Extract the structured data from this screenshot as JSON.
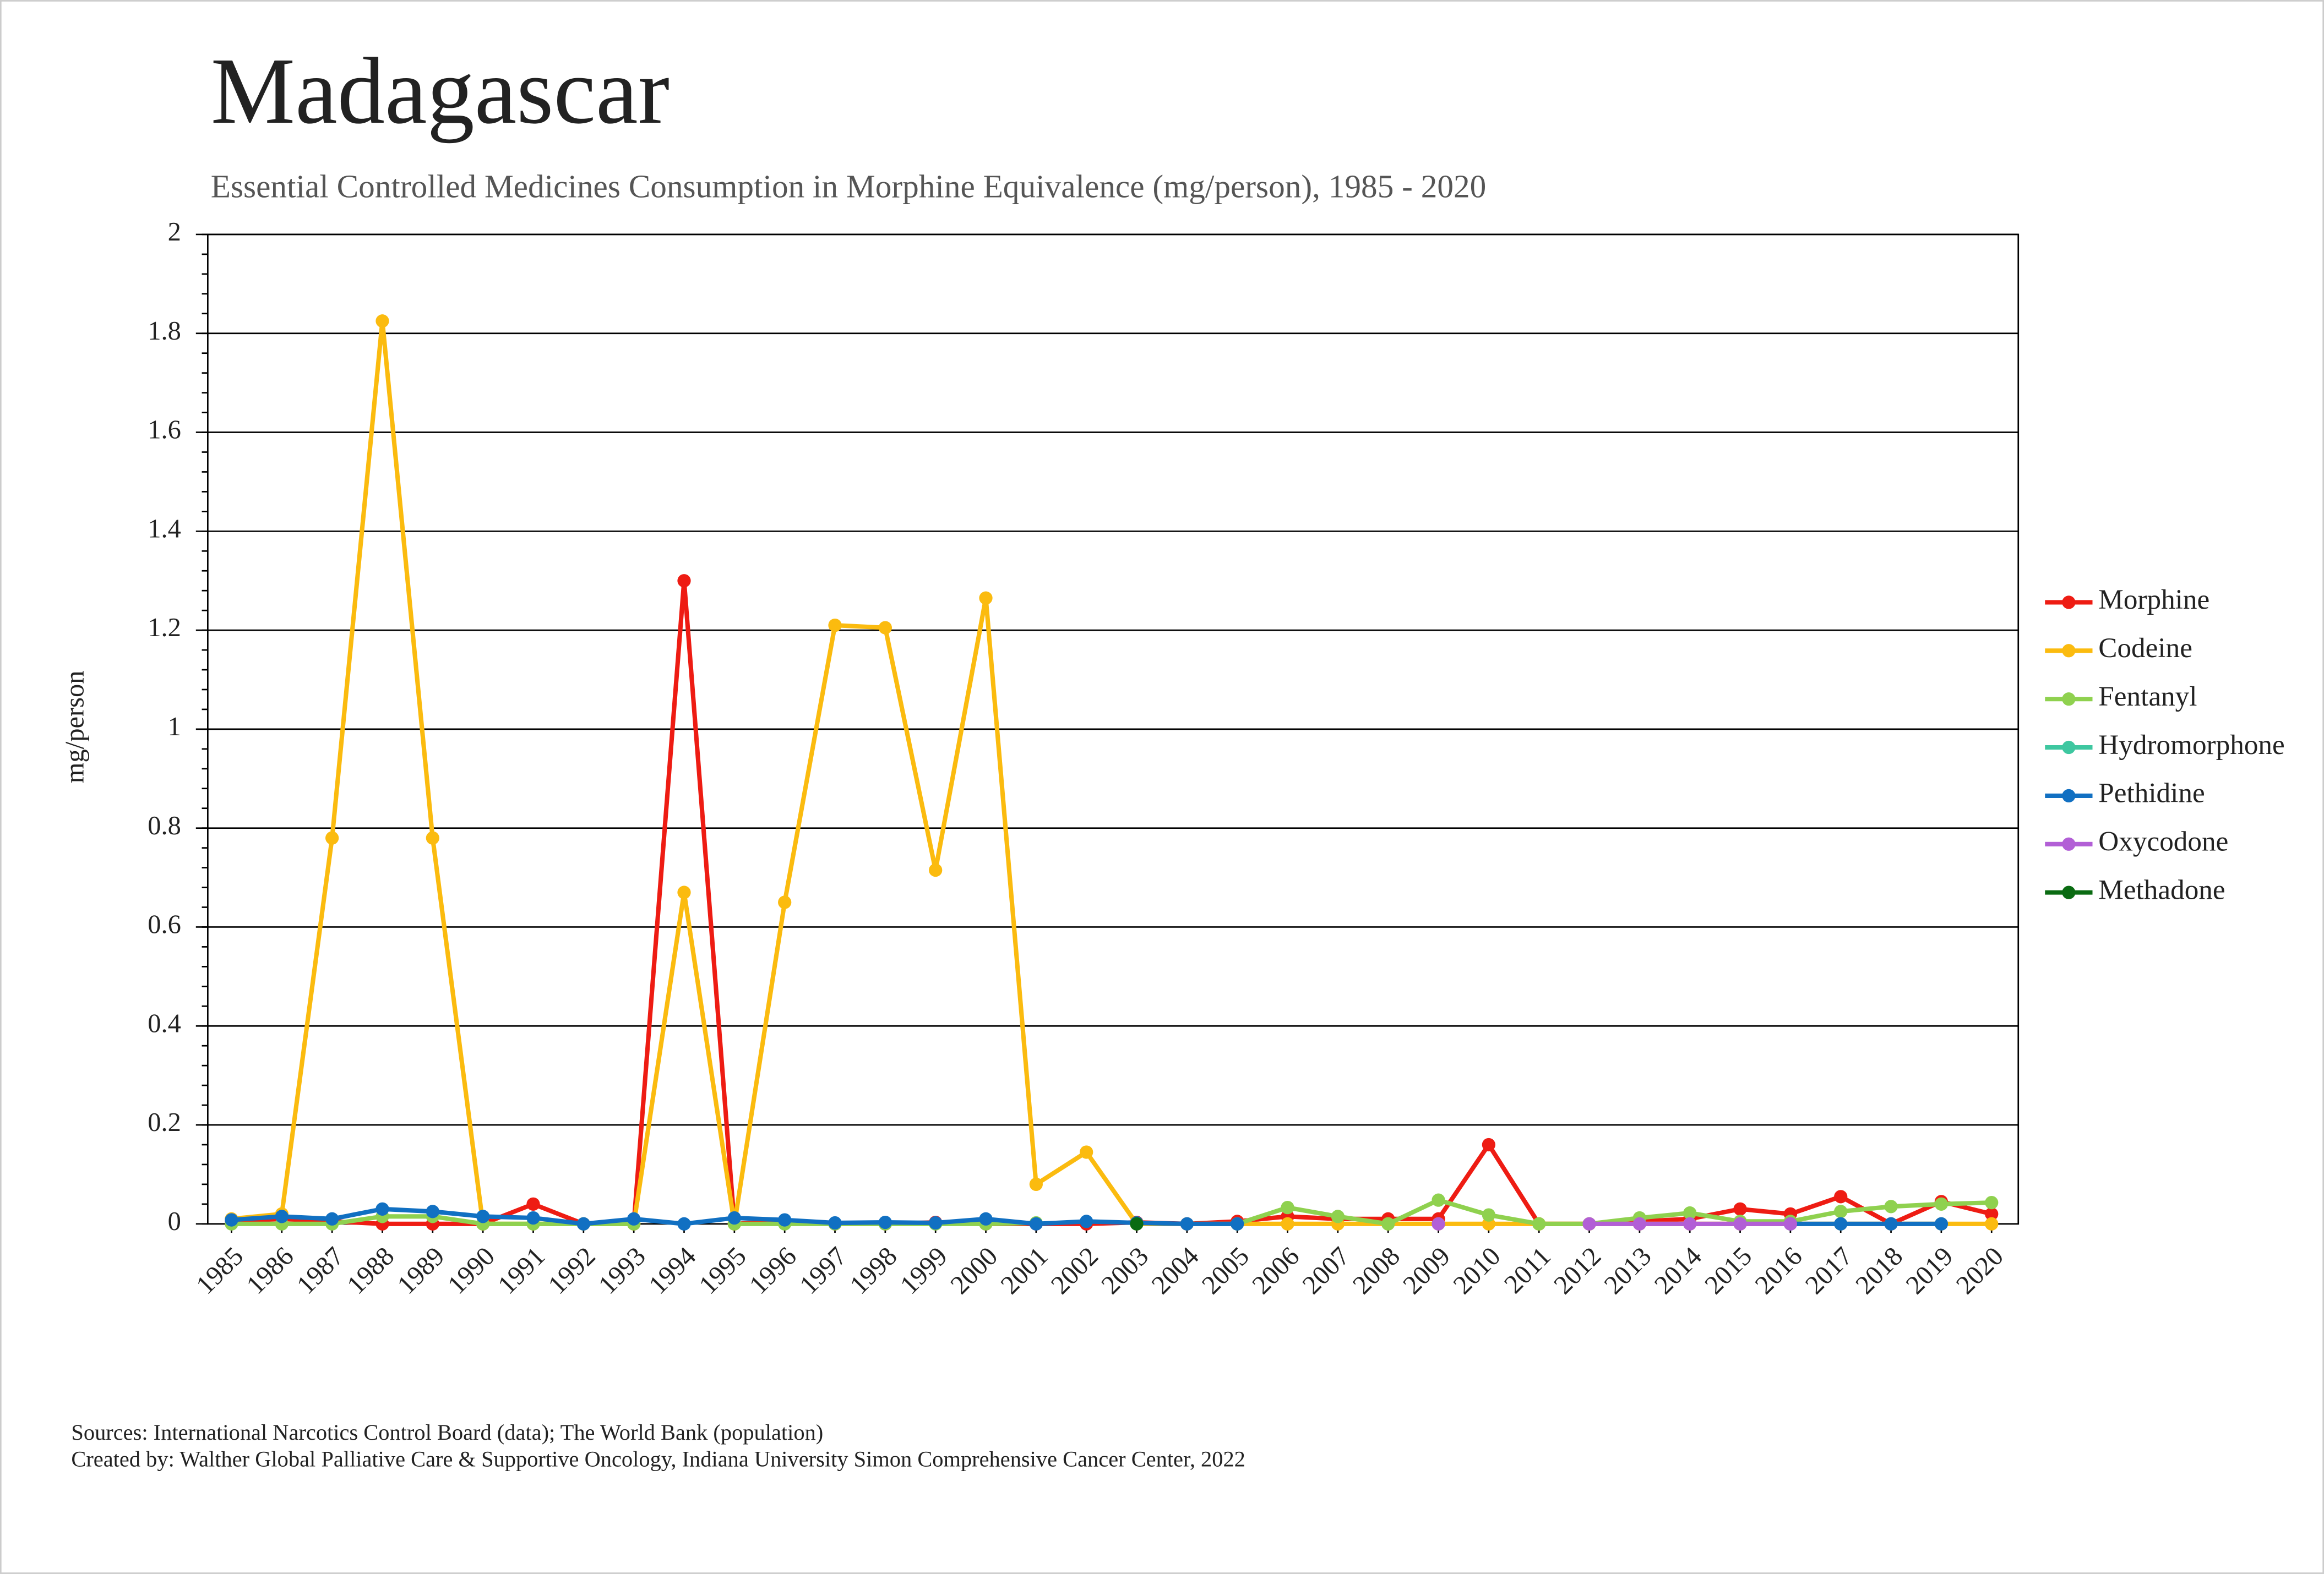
{
  "chart_data": {
    "type": "line",
    "title": "Madagascar",
    "subtitle": "Essential Controlled Medicines Consumption in Morphine Equivalence (mg/person), 1985 - 2020",
    "y_label": "mg/person",
    "categories": [
      "1985",
      "1986",
      "1987",
      "1988",
      "1989",
      "1990",
      "1991",
      "1992",
      "1993",
      "1994",
      "1995",
      "1996",
      "1997",
      "1998",
      "1999",
      "2000",
      "2001",
      "2002",
      "2003",
      "2004",
      "2005",
      "2006",
      "2007",
      "2008",
      "2009",
      "2010",
      "2011",
      "2012",
      "2013",
      "2014",
      "2015",
      "2016",
      "2017",
      "2018",
      "2019",
      "2020"
    ],
    "series": [
      {
        "name": "Morphine",
        "color": "#ee1c13",
        "values": [
          0.005,
          0.01,
          0.005,
          0,
          0,
          0,
          0.04,
          0,
          0,
          1.3,
          0,
          0.005,
          0,
          0,
          0.003,
          0,
          0,
          0,
          0.003,
          0,
          0.005,
          0.015,
          0.01,
          0.01,
          0.01,
          0.16,
          0,
          0,
          0.005,
          0.01,
          0.03,
          0.02,
          0.055,
          0,
          0.045,
          0.02
        ]
      },
      {
        "name": "Codeine",
        "color": "#fbbb0f",
        "values": [
          0.01,
          0.02,
          0.78,
          1.825,
          0.78,
          0,
          0,
          0,
          0,
          0.67,
          0,
          0.65,
          1.21,
          1.205,
          0.715,
          1.265,
          0.08,
          0.145,
          0,
          0,
          0,
          0,
          0,
          0,
          0,
          0,
          0,
          0,
          0,
          0,
          0,
          0,
          0,
          0,
          0,
          0
        ]
      },
      {
        "name": "Fentanyl",
        "color": "#8fd14f",
        "values": [
          0,
          0,
          0,
          0.015,
          0.015,
          0,
          0,
          0,
          0,
          null,
          0,
          0,
          0,
          0,
          0,
          0,
          0.002,
          null,
          null,
          null,
          0,
          0.033,
          0.015,
          0,
          0.048,
          0.018,
          0,
          0,
          0.012,
          0.022,
          0.005,
          0.005,
          0.025,
          0.035,
          0.04,
          0.043
        ]
      },
      {
        "name": "Hydromorphone",
        "color": "#3ec7a0",
        "values": [
          null,
          null,
          null,
          null,
          null,
          null,
          null,
          null,
          null,
          null,
          null,
          null,
          null,
          null,
          null,
          null,
          null,
          null,
          null,
          null,
          null,
          null,
          null,
          null,
          null,
          null,
          null,
          null,
          null,
          null,
          null,
          null,
          null,
          null,
          null,
          null
        ]
      },
      {
        "name": "Pethidine",
        "color": "#1170c2",
        "values": [
          0.008,
          0.015,
          0.01,
          0.03,
          0.025,
          0.015,
          0.012,
          0,
          0.01,
          0,
          0.012,
          0.008,
          0.002,
          0.003,
          0.002,
          0.01,
          0,
          0.005,
          0.002,
          0,
          0,
          null,
          null,
          null,
          null,
          null,
          null,
          null,
          null,
          null,
          null,
          0,
          0,
          0,
          0,
          null
        ]
      },
      {
        "name": "Oxycodone",
        "color": "#b25fd6",
        "values": [
          null,
          null,
          null,
          null,
          null,
          null,
          null,
          null,
          null,
          null,
          null,
          null,
          null,
          null,
          null,
          null,
          null,
          null,
          null,
          null,
          null,
          null,
          null,
          null,
          0,
          null,
          null,
          0,
          0,
          0,
          0,
          0,
          null,
          null,
          null,
          null
        ]
      },
      {
        "name": "Methadone",
        "color": "#0a6b12",
        "values": [
          null,
          null,
          null,
          null,
          null,
          null,
          null,
          null,
          null,
          null,
          null,
          null,
          null,
          null,
          null,
          null,
          null,
          null,
          0,
          null,
          null,
          null,
          null,
          null,
          null,
          null,
          null,
          null,
          null,
          null,
          null,
          null,
          null,
          null,
          null,
          null
        ]
      }
    ],
    "ylim": [
      0,
      2
    ],
    "yticks": [
      0,
      0.2,
      0.4,
      0.6,
      0.8,
      1,
      1.2,
      1.4,
      1.6,
      1.8,
      2
    ],
    "grid": true,
    "legend": "right",
    "sources": "Sources: International Narcotics Control Board (data); The World Bank (population)",
    "credit": "Created by: Walther Global Palliative Care & Supportive Oncology, Indiana University Simon Comprehensive Cancer Center, 2022"
  }
}
